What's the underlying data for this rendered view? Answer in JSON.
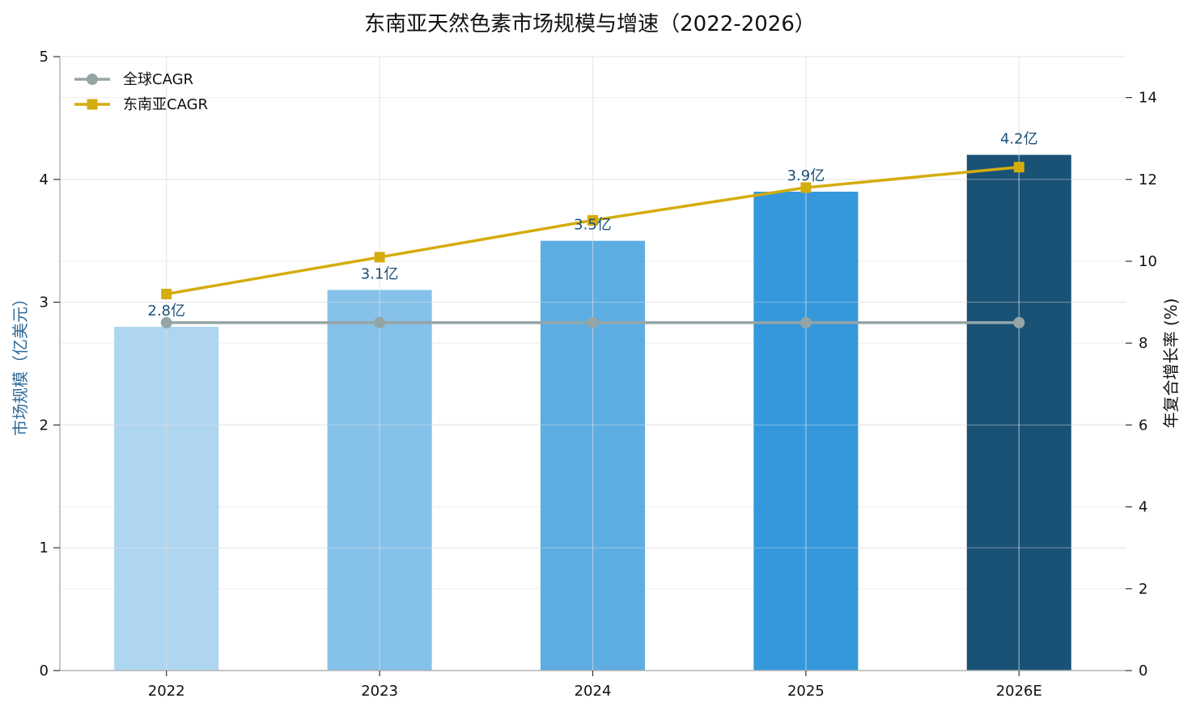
{
  "chart_data": {
    "type": "bar",
    "title": "东南亚天然色素市场规模与增速（2022-2026）",
    "categories": [
      "2022",
      "2023",
      "2024",
      "2025",
      "2026E"
    ],
    "bar_series": {
      "values": [
        2.8,
        3.1,
        3.5,
        3.9,
        4.2
      ],
      "labels": [
        "2.8亿",
        "3.1亿",
        "3.5亿",
        "3.9亿",
        "4.2亿"
      ],
      "colors": [
        "#aed6f1",
        "#85c1e9",
        "#5dade2",
        "#3498db",
        "#1a5276"
      ]
    },
    "line_series": [
      {
        "name": "全球CAGR",
        "values": [
          8.5,
          8.5,
          8.5,
          8.5,
          8.5
        ],
        "color": "#95a5a6",
        "marker": "circle"
      },
      {
        "name": "东南亚CAGR",
        "values": [
          9.2,
          10.1,
          11.0,
          11.8,
          12.3
        ],
        "color": "#d4ac0d",
        "marker": "square"
      }
    ],
    "ylabel": "市场规模（亿美元）",
    "y2label": "年复合增长率 (%)",
    "ylim": [
      0,
      5
    ],
    "y2lim": [
      0,
      15
    ],
    "yticks": [
      0,
      1,
      2,
      3,
      4,
      5
    ],
    "y2ticks": [
      0,
      2,
      4,
      6,
      8,
      10,
      12,
      14
    ],
    "grid": true,
    "legend_position": "top-left"
  }
}
